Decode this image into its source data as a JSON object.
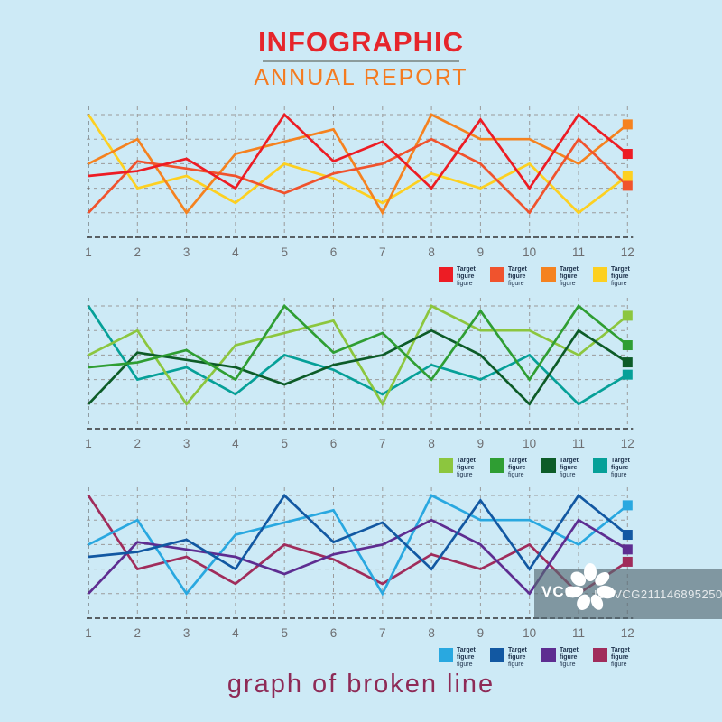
{
  "header": {
    "title": "INFOGRAPHIC",
    "subtitle": "ANNUAL REPORT",
    "title_color": "#e6252b",
    "subtitle_color": "#f47b20"
  },
  "footer": {
    "caption": "graph of broken line",
    "color": "#8e2a56"
  },
  "watermark": {
    "brand": "VCG",
    "id_text": "ID: VCG211146895250"
  },
  "chart_data": [
    {
      "type": "line",
      "title": "",
      "x_labels": [
        "1",
        "2",
        "3",
        "4",
        "5",
        "6",
        "7",
        "8",
        "9",
        "10",
        "11",
        "12"
      ],
      "xlim": [
        1,
        12
      ],
      "ylim": [
        0,
        5.4
      ],
      "gridline_values": [
        1,
        2,
        3,
        4,
        5
      ],
      "grid": "dashed",
      "legend_position": "bottom-right",
      "series": [
        {
          "name": "target-red",
          "color": "#ed1c24",
          "z": 4,
          "label": "Target figure",
          "sublabel": "figure",
          "values": [
            2.5,
            2.7,
            3.2,
            2.0,
            5.0,
            3.1,
            3.9,
            2.0,
            4.8,
            2.0,
            5.0,
            3.4
          ]
        },
        {
          "name": "target-vermilion",
          "color": "#f0532d",
          "z": 3,
          "label": "Target figure",
          "sublabel": "figure",
          "values": [
            1.0,
            3.1,
            2.8,
            2.5,
            1.8,
            2.6,
            3.0,
            4.0,
            3.0,
            1.0,
            4.0,
            2.1
          ]
        },
        {
          "name": "target-orange",
          "color": "#f5821f",
          "z": 2,
          "label": "Target figure",
          "sublabel": "figure",
          "values": [
            3.0,
            4.0,
            1.0,
            3.4,
            3.9,
            4.4,
            1.0,
            5.0,
            4.0,
            4.0,
            3.0,
            4.6
          ]
        },
        {
          "name": "target-yellow",
          "color": "#fdd021",
          "z": 1,
          "label": "Target figure",
          "sublabel": "figure",
          "values": [
            5.0,
            2.0,
            2.5,
            1.4,
            3.0,
            2.4,
            1.4,
            2.6,
            2.0,
            3.0,
            1.0,
            2.5
          ]
        }
      ]
    },
    {
      "type": "line",
      "title": "",
      "x_labels": [
        "1",
        "2",
        "3",
        "4",
        "5",
        "6",
        "7",
        "8",
        "9",
        "10",
        "11",
        "12"
      ],
      "xlim": [
        1,
        12
      ],
      "ylim": [
        0,
        5.4
      ],
      "gridline_values": [
        1,
        2,
        3,
        4,
        5
      ],
      "grid": "dashed",
      "legend_position": "bottom-right",
      "series": [
        {
          "name": "target-light-green",
          "color": "#8cc63e",
          "z": 2,
          "label": "Target figure",
          "sublabel": "figure",
          "values": [
            3.0,
            4.0,
            1.0,
            3.4,
            3.9,
            4.4,
            1.0,
            5.0,
            4.0,
            4.0,
            3.0,
            4.6
          ]
        },
        {
          "name": "target-green",
          "color": "#2f9e33",
          "z": 4,
          "label": "Target figure",
          "sublabel": "figure",
          "values": [
            2.5,
            2.7,
            3.2,
            2.0,
            5.0,
            3.1,
            3.9,
            2.0,
            4.8,
            2.0,
            5.0,
            3.4
          ]
        },
        {
          "name": "target-dark-green",
          "color": "#0d5c28",
          "z": 3,
          "label": "Target figure",
          "sublabel": "figure",
          "values": [
            1.0,
            3.1,
            2.8,
            2.5,
            1.8,
            2.6,
            3.0,
            4.0,
            3.0,
            1.0,
            4.0,
            2.7
          ]
        },
        {
          "name": "target-teal",
          "color": "#06a098",
          "z": 1,
          "label": "Target figure",
          "sublabel": "figure",
          "values": [
            5.0,
            2.0,
            2.5,
            1.4,
            3.0,
            2.4,
            1.4,
            2.6,
            2.0,
            3.0,
            1.0,
            2.2
          ]
        }
      ]
    },
    {
      "type": "line",
      "title": "",
      "x_labels": [
        "1",
        "2",
        "3",
        "4",
        "5",
        "6",
        "7",
        "8",
        "9",
        "10",
        "11",
        "12"
      ],
      "xlim": [
        1,
        12
      ],
      "ylim": [
        0,
        5.4
      ],
      "gridline_values": [
        1,
        2,
        3,
        4,
        5
      ],
      "grid": "dashed",
      "legend_position": "bottom-right",
      "series": [
        {
          "name": "target-light-blue",
          "color": "#29a8e0",
          "z": 2,
          "label": "Target figure",
          "sublabel": "figure",
          "values": [
            3.0,
            4.0,
            1.0,
            3.4,
            3.9,
            4.4,
            1.0,
            5.0,
            4.0,
            4.0,
            3.0,
            4.6
          ]
        },
        {
          "name": "target-dark-blue",
          "color": "#1258a2",
          "z": 4,
          "label": "Target figure",
          "sublabel": "figure",
          "values": [
            2.5,
            2.7,
            3.2,
            2.0,
            5.0,
            3.1,
            3.9,
            2.0,
            4.8,
            2.0,
            5.0,
            3.4
          ]
        },
        {
          "name": "target-purple",
          "color": "#5e2d91",
          "z": 3,
          "label": "Target figure",
          "sublabel": "figure",
          "values": [
            1.0,
            3.1,
            2.8,
            2.5,
            1.8,
            2.6,
            3.0,
            4.0,
            3.0,
            1.0,
            4.0,
            2.8
          ]
        },
        {
          "name": "target-plum",
          "color": "#a02c5b",
          "z": 1,
          "label": "Target figure",
          "sublabel": "figure",
          "values": [
            5.0,
            2.0,
            2.5,
            1.4,
            3.0,
            2.4,
            1.4,
            2.6,
            2.0,
            3.0,
            1.0,
            2.3
          ]
        }
      ]
    }
  ]
}
